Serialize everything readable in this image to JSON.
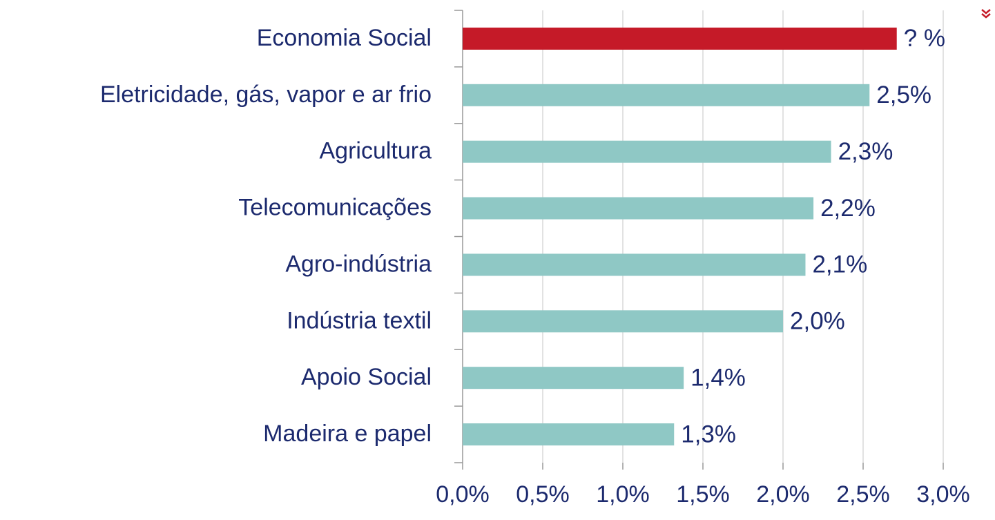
{
  "chart_data": {
    "type": "barh",
    "categories": [
      "Economia Social",
      "Eletricidade, gás, vapor e ar frio",
      "Agricultura",
      "Telecomunicações",
      "Agro-indústria",
      "Indústria textil",
      "Apoio Social",
      "Madeira e papel"
    ],
    "values": [
      2.71,
      2.54,
      2.3,
      2.19,
      2.14,
      2.0,
      1.38,
      1.32
    ],
    "value_labels": [
      "? %",
      "2,5%",
      "2,3%",
      "2,2%",
      "2,1%",
      "2,0%",
      "1,4%",
      "1,3%"
    ],
    "colors": [
      "#c51a28",
      "#8fc8c5",
      "#8fc8c5",
      "#8fc8c5",
      "#8fc8c5",
      "#8fc8c5",
      "#8fc8c5",
      "#8fc8c5"
    ],
    "xlim": [
      0,
      3
    ],
    "xticks": [
      {
        "value": 0,
        "label": "0,0%"
      },
      {
        "value": 0.5,
        "label": "0,5%"
      },
      {
        "value": 1,
        "label": "1,0%"
      },
      {
        "value": 1.5,
        "label": "1,5%"
      },
      {
        "value": 2,
        "label": "2,0%"
      },
      {
        "value": 2.5,
        "label": "2,5%"
      },
      {
        "value": 3,
        "label": "3,0%"
      }
    ],
    "grid": true
  }
}
